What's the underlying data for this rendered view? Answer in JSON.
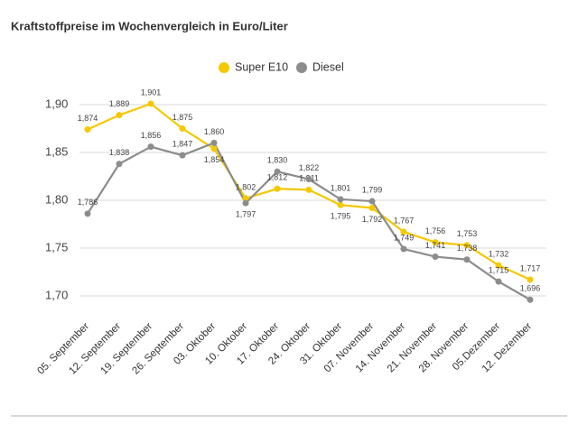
{
  "chart_data": {
    "type": "line",
    "title": "Kraftstoffpreise im Wochenvergleich in Euro/Liter",
    "categories": [
      "05. September",
      "12. September",
      "19. September",
      "26. September",
      "03. Oktober",
      "10. Oktober",
      "17. Oktober",
      "24. Oktober",
      "31. Oktober",
      "07. November",
      "14. November",
      "21. November",
      "28. November",
      "05.Dezember",
      "12. Dezember"
    ],
    "series": [
      {
        "name": "Super E10",
        "color": "#f5c800",
        "values": [
          1.874,
          1.889,
          1.901,
          1.875,
          1.854,
          1.802,
          1.812,
          1.811,
          1.795,
          1.792,
          1.767,
          1.756,
          1.753,
          1.732,
          1.717
        ],
        "value_labels": [
          "1,874",
          "1,889",
          "1,901",
          "1,875",
          "1,854",
          "1,802",
          "1,812",
          "1,811",
          "1,795",
          "1,792",
          "1,767",
          "1,756",
          "1,753",
          "1,732",
          "1,717"
        ]
      },
      {
        "name": "Diesel",
        "color": "#8c8c8c",
        "values": [
          1.786,
          1.838,
          1.856,
          1.847,
          1.86,
          1.797,
          1.83,
          1.822,
          1.801,
          1.799,
          1.749,
          1.741,
          1.738,
          1.715,
          1.696
        ],
        "value_labels": [
          "1,786",
          "1,838",
          "1,856",
          "1,847",
          "1,860",
          "1,797",
          "1,830",
          "1,822",
          "1,801",
          "1,799",
          "1,749",
          "1,741",
          "1,738",
          "1,715",
          "1,696"
        ]
      }
    ],
    "ylim": [
      1.69,
      1.91
    ],
    "yticks": [
      {
        "value": 1.7,
        "label": "1,70"
      },
      {
        "value": 1.75,
        "label": "1,75"
      },
      {
        "value": 1.8,
        "label": "1,80"
      },
      {
        "value": 1.85,
        "label": "1,85"
      },
      {
        "value": 1.9,
        "label": "1,90"
      }
    ],
    "grid": true
  }
}
